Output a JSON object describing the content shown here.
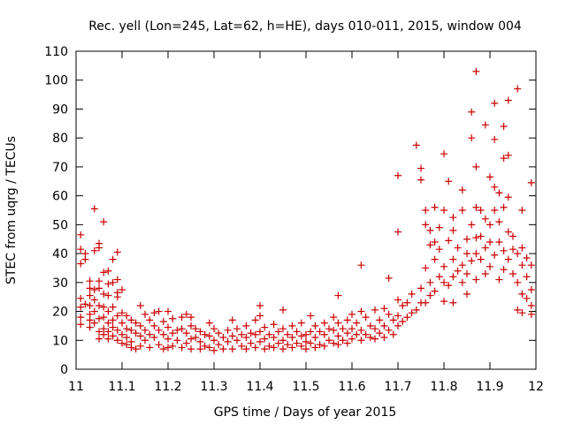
{
  "chart_data": {
    "type": "scatter",
    "title": "Rec. yell (Lon=245, Lat=62, h=HE), days 010-011, 2015, window 004",
    "xlabel": "GPS time / Days of year 2015",
    "ylabel": "STEC from uqrg / TECUs",
    "xlim": [
      11,
      12
    ],
    "ylim": [
      0,
      110
    ],
    "xticks": [
      11,
      11.1,
      11.2,
      11.3,
      11.4,
      11.5,
      11.6,
      11.7,
      11.8,
      11.9,
      12
    ],
    "xtick_labels": [
      "11",
      "11.1",
      "11.2",
      "11.3",
      "11.4",
      "11.5",
      "11.6",
      "11.7",
      "11.8",
      "11.9",
      "12"
    ],
    "yticks": [
      0,
      10,
      20,
      30,
      40,
      50,
      60,
      70,
      80,
      90,
      100,
      110
    ],
    "ytick_labels": [
      "0",
      "10",
      "20",
      "30",
      "40",
      "50",
      "60",
      "70",
      "80",
      "90",
      "100",
      "110"
    ],
    "marker": "+",
    "marker_color": "#cc0000",
    "grid": false,
    "points": [
      [
        11.01,
        46.5
      ],
      [
        11.01,
        41.5
      ],
      [
        11.01,
        36.5
      ],
      [
        11.01,
        24.5
      ],
      [
        11.01,
        21.5
      ],
      [
        11.01,
        18
      ],
      [
        11.01,
        15.5
      ],
      [
        11.02,
        40
      ],
      [
        11.02,
        38
      ],
      [
        11.02,
        22.5
      ],
      [
        11.03,
        30.5
      ],
      [
        11.03,
        28
      ],
      [
        11.03,
        25.5
      ],
      [
        11.03,
        22
      ],
      [
        11.03,
        19
      ],
      [
        11.03,
        17
      ],
      [
        11.03,
        14.5
      ],
      [
        11.04,
        55.5
      ],
      [
        11.04,
        41
      ],
      [
        11.04,
        27.5
      ],
      [
        11.04,
        24
      ],
      [
        11.04,
        20
      ],
      [
        11.04,
        16
      ],
      [
        11.05,
        43.5
      ],
      [
        11.05,
        42
      ],
      [
        11.05,
        30.5
      ],
      [
        11.05,
        28
      ],
      [
        11.05,
        22
      ],
      [
        11.05,
        17.5
      ],
      [
        11.05,
        13
      ],
      [
        11.05,
        10.5
      ],
      [
        11.06,
        51
      ],
      [
        11.06,
        33.5
      ],
      [
        11.06,
        26
      ],
      [
        11.06,
        21.5
      ],
      [
        11.06,
        18
      ],
      [
        11.06,
        14
      ],
      [
        11.06,
        12
      ],
      [
        11.07,
        34
      ],
      [
        11.07,
        29.5
      ],
      [
        11.07,
        25.5
      ],
      [
        11.07,
        20
      ],
      [
        11.07,
        16
      ],
      [
        11.07,
        13
      ],
      [
        11.07,
        10.5
      ],
      [
        11.08,
        38
      ],
      [
        11.08,
        30
      ],
      [
        11.08,
        21.5
      ],
      [
        11.08,
        17
      ],
      [
        11.08,
        14.5
      ],
      [
        11.08,
        11.5
      ],
      [
        11.09,
        40.5
      ],
      [
        11.09,
        31
      ],
      [
        11.09,
        26.5
      ],
      [
        11.09,
        25
      ],
      [
        11.09,
        18.5
      ],
      [
        11.09,
        13.5
      ],
      [
        11.09,
        10
      ],
      [
        11.1,
        27.5
      ],
      [
        11.1,
        19.5
      ],
      [
        11.1,
        16
      ],
      [
        11.1,
        12
      ],
      [
        11.1,
        9
      ],
      [
        11.11,
        18.5
      ],
      [
        11.11,
        14
      ],
      [
        11.11,
        11
      ],
      [
        11.11,
        8.5
      ],
      [
        11.12,
        17
      ],
      [
        11.12,
        13.5
      ],
      [
        11.12,
        9.5
      ],
      [
        11.12,
        7.5
      ],
      [
        11.13,
        16
      ],
      [
        11.13,
        12.5
      ],
      [
        11.13,
        7
      ],
      [
        11.14,
        22
      ],
      [
        11.14,
        15
      ],
      [
        11.14,
        11.5
      ],
      [
        11.14,
        8
      ],
      [
        11.15,
        19
      ],
      [
        11.15,
        13.5
      ],
      [
        11.15,
        10
      ],
      [
        11.16,
        17
      ],
      [
        11.16,
        12
      ],
      [
        11.16,
        7.5
      ],
      [
        11.17,
        19.5
      ],
      [
        11.17,
        15
      ],
      [
        11.17,
        11
      ],
      [
        11.18,
        20
      ],
      [
        11.18,
        13.5
      ],
      [
        11.18,
        8.5
      ],
      [
        11.19,
        16.5
      ],
      [
        11.19,
        12
      ],
      [
        11.19,
        7
      ],
      [
        11.2,
        20
      ],
      [
        11.2,
        14.5
      ],
      [
        11.2,
        10.5
      ],
      [
        11.2,
        7.5
      ],
      [
        11.21,
        17.5
      ],
      [
        11.21,
        12.5
      ],
      [
        11.21,
        8
      ],
      [
        11.22,
        13.5
      ],
      [
        11.22,
        10
      ],
      [
        11.23,
        18
      ],
      [
        11.23,
        14
      ],
      [
        11.23,
        7.5
      ],
      [
        11.24,
        19
      ],
      [
        11.24,
        12.5
      ],
      [
        11.24,
        9
      ],
      [
        11.25,
        18
      ],
      [
        11.25,
        15
      ],
      [
        11.25,
        10.5
      ],
      [
        11.25,
        7
      ],
      [
        11.26,
        14
      ],
      [
        11.26,
        11
      ],
      [
        11.27,
        13
      ],
      [
        11.27,
        9.5
      ],
      [
        11.27,
        7
      ],
      [
        11.28,
        12
      ],
      [
        11.28,
        8
      ],
      [
        11.29,
        16
      ],
      [
        11.29,
        11.5
      ],
      [
        11.29,
        7.5
      ],
      [
        11.3,
        14
      ],
      [
        11.3,
        10
      ],
      [
        11.3,
        6.5
      ],
      [
        11.31,
        12.5
      ],
      [
        11.31,
        8.5
      ],
      [
        11.32,
        11
      ],
      [
        11.32,
        7
      ],
      [
        11.33,
        13.5
      ],
      [
        11.33,
        9.5
      ],
      [
        11.34,
        17
      ],
      [
        11.34,
        11.5
      ],
      [
        11.34,
        7
      ],
      [
        11.35,
        14
      ],
      [
        11.35,
        10
      ],
      [
        11.36,
        12
      ],
      [
        11.36,
        8
      ],
      [
        11.37,
        15
      ],
      [
        11.37,
        11
      ],
      [
        11.37,
        7
      ],
      [
        11.38,
        12.5
      ],
      [
        11.38,
        9
      ],
      [
        11.39,
        17
      ],
      [
        11.39,
        12
      ],
      [
        11.39,
        7.5
      ],
      [
        11.4,
        22
      ],
      [
        11.4,
        18.5
      ],
      [
        11.4,
        13
      ],
      [
        11.4,
        9.5
      ],
      [
        11.41,
        14.5
      ],
      [
        11.41,
        10.5
      ],
      [
        11.41,
        7
      ],
      [
        11.42,
        12
      ],
      [
        11.42,
        8
      ],
      [
        11.43,
        15.5
      ],
      [
        11.43,
        11
      ],
      [
        11.43,
        7.5
      ],
      [
        11.44,
        13
      ],
      [
        11.44,
        9
      ],
      [
        11.45,
        20.5
      ],
      [
        11.45,
        14
      ],
      [
        11.45,
        10
      ],
      [
        11.45,
        7
      ],
      [
        11.46,
        12
      ],
      [
        11.46,
        8.5
      ],
      [
        11.47,
        15
      ],
      [
        11.47,
        11
      ],
      [
        11.47,
        7.5
      ],
      [
        11.48,
        13
      ],
      [
        11.48,
        9
      ],
      [
        11.49,
        16
      ],
      [
        11.49,
        11.5
      ],
      [
        11.49,
        8
      ],
      [
        11.5,
        12
      ],
      [
        11.5,
        9.5
      ],
      [
        11.5,
        7
      ],
      [
        11.51,
        18.5
      ],
      [
        11.51,
        13
      ],
      [
        11.51,
        9
      ],
      [
        11.52,
        15
      ],
      [
        11.52,
        11
      ],
      [
        11.52,
        7.5
      ],
      [
        11.53,
        13
      ],
      [
        11.53,
        8.5
      ],
      [
        11.54,
        16
      ],
      [
        11.54,
        12
      ],
      [
        11.54,
        8
      ],
      [
        11.55,
        14
      ],
      [
        11.55,
        10
      ],
      [
        11.56,
        18
      ],
      [
        11.56,
        13.5
      ],
      [
        11.56,
        9
      ],
      [
        11.57,
        25.5
      ],
      [
        11.57,
        16
      ],
      [
        11.57,
        11.5
      ],
      [
        11.57,
        8.5
      ],
      [
        11.58,
        14
      ],
      [
        11.58,
        10
      ],
      [
        11.59,
        17
      ],
      [
        11.59,
        12.5
      ],
      [
        11.59,
        9
      ],
      [
        11.6,
        19
      ],
      [
        11.6,
        14
      ],
      [
        11.6,
        10.5
      ],
      [
        11.61,
        16
      ],
      [
        11.61,
        12
      ],
      [
        11.62,
        36
      ],
      [
        11.62,
        20
      ],
      [
        11.62,
        13.5
      ],
      [
        11.62,
        10
      ],
      [
        11.63,
        18
      ],
      [
        11.63,
        12
      ],
      [
        11.64,
        15
      ],
      [
        11.64,
        11
      ],
      [
        11.65,
        20.5
      ],
      [
        11.65,
        14
      ],
      [
        11.65,
        10.5
      ],
      [
        11.66,
        17
      ],
      [
        11.66,
        12.5
      ],
      [
        11.67,
        21
      ],
      [
        11.67,
        15
      ],
      [
        11.67,
        11
      ],
      [
        11.68,
        31.5
      ],
      [
        11.68,
        19
      ],
      [
        11.68,
        13.5
      ],
      [
        11.69,
        17
      ],
      [
        11.69,
        12
      ],
      [
        11.7,
        67
      ],
      [
        11.7,
        47.5
      ],
      [
        11.7,
        24
      ],
      [
        11.7,
        18.5
      ],
      [
        11.7,
        15
      ],
      [
        11.71,
        22
      ],
      [
        11.71,
        16.5
      ],
      [
        11.72,
        23
      ],
      [
        11.72,
        18
      ],
      [
        11.73,
        26
      ],
      [
        11.73,
        19.5
      ],
      [
        11.74,
        77.5
      ],
      [
        11.74,
        20.5
      ],
      [
        11.75,
        69.5
      ],
      [
        11.75,
        65.5
      ],
      [
        11.75,
        28
      ],
      [
        11.75,
        23
      ],
      [
        11.76,
        55
      ],
      [
        11.76,
        50
      ],
      [
        11.76,
        35
      ],
      [
        11.76,
        23
      ],
      [
        11.77,
        48
      ],
      [
        11.77,
        43
      ],
      [
        11.77,
        30
      ],
      [
        11.77,
        25.5
      ],
      [
        11.78,
        56
      ],
      [
        11.78,
        44
      ],
      [
        11.78,
        38
      ],
      [
        11.78,
        27
      ],
      [
        11.79,
        49
      ],
      [
        11.79,
        41.5
      ],
      [
        11.79,
        32
      ],
      [
        11.8,
        74.5
      ],
      [
        11.8,
        55
      ],
      [
        11.8,
        35.5
      ],
      [
        11.8,
        30
      ],
      [
        11.8,
        23.5
      ],
      [
        11.81,
        65
      ],
      [
        11.81,
        44.5
      ],
      [
        11.81,
        29
      ],
      [
        11.82,
        52.5
      ],
      [
        11.82,
        48
      ],
      [
        11.82,
        38
      ],
      [
        11.82,
        32
      ],
      [
        11.82,
        23
      ],
      [
        11.83,
        42
      ],
      [
        11.83,
        34
      ],
      [
        11.84,
        62
      ],
      [
        11.84,
        55
      ],
      [
        11.84,
        36
      ],
      [
        11.84,
        30
      ],
      [
        11.85,
        45
      ],
      [
        11.85,
        40
      ],
      [
        11.85,
        33
      ],
      [
        11.85,
        26
      ],
      [
        11.86,
        89
      ],
      [
        11.86,
        80
      ],
      [
        11.86,
        50
      ],
      [
        11.86,
        37.5
      ],
      [
        11.87,
        103
      ],
      [
        11.87,
        70
      ],
      [
        11.87,
        56
      ],
      [
        11.87,
        45.5
      ],
      [
        11.87,
        40
      ],
      [
        11.87,
        31
      ],
      [
        11.88,
        55
      ],
      [
        11.88,
        46
      ],
      [
        11.88,
        38
      ],
      [
        11.89,
        84.5
      ],
      [
        11.89,
        52
      ],
      [
        11.89,
        42
      ],
      [
        11.89,
        33
      ],
      [
        11.9,
        66.5
      ],
      [
        11.9,
        50
      ],
      [
        11.9,
        44
      ],
      [
        11.9,
        35.5
      ],
      [
        11.91,
        92
      ],
      [
        11.91,
        79.5
      ],
      [
        11.91,
        63
      ],
      [
        11.91,
        55
      ],
      [
        11.91,
        39.5
      ],
      [
        11.92,
        61
      ],
      [
        11.92,
        51
      ],
      [
        11.92,
        44
      ],
      [
        11.92,
        31
      ],
      [
        11.93,
        84
      ],
      [
        11.93,
        73
      ],
      [
        11.93,
        56
      ],
      [
        11.93,
        41
      ],
      [
        11.93,
        34.5
      ],
      [
        11.94,
        93
      ],
      [
        11.94,
        74
      ],
      [
        11.94,
        59.5
      ],
      [
        11.94,
        47.5
      ],
      [
        11.94,
        38
      ],
      [
        11.95,
        46
      ],
      [
        11.95,
        41.5
      ],
      [
        11.95,
        33
      ],
      [
        11.96,
        97
      ],
      [
        11.96,
        40
      ],
      [
        11.96,
        30
      ],
      [
        11.96,
        20.5
      ],
      [
        11.97,
        55
      ],
      [
        11.97,
        42
      ],
      [
        11.97,
        36
      ],
      [
        11.97,
        26
      ],
      [
        11.97,
        19.5
      ],
      [
        11.98,
        38.5
      ],
      [
        11.98,
        32
      ],
      [
        11.98,
        24.5
      ],
      [
        11.99,
        64.5
      ],
      [
        11.99,
        36
      ],
      [
        11.99,
        27.5
      ],
      [
        11.99,
        22
      ],
      [
        11.99,
        19
      ]
    ]
  }
}
